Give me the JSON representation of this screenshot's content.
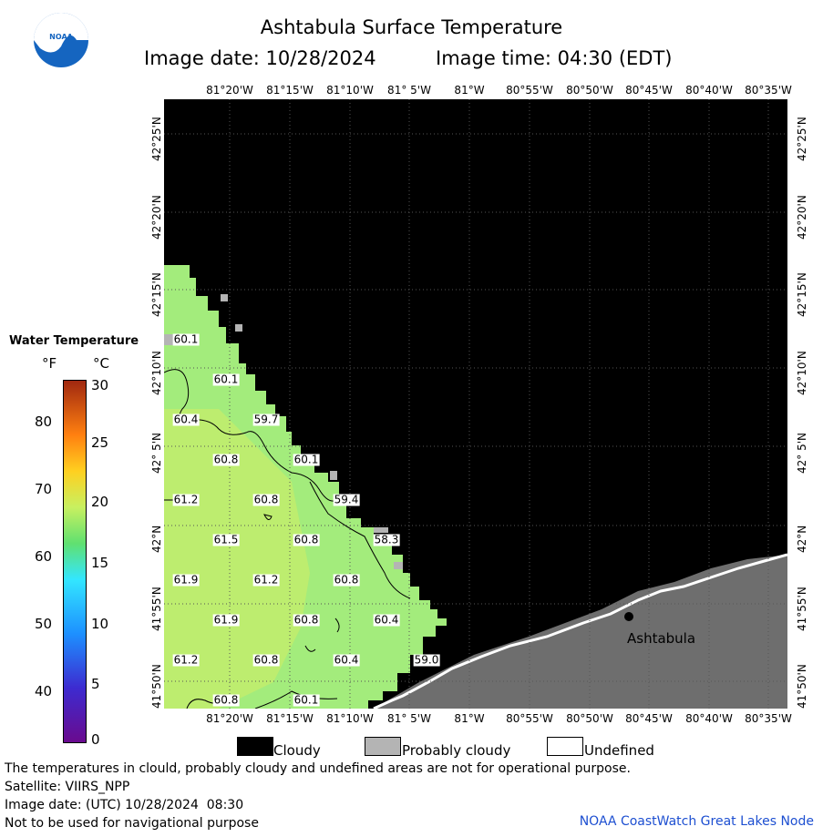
{
  "title": "Ashtabula Surface Temperature",
  "image_date": "Image date: 10/28/2024",
  "image_time": "Image time: 04:30 (EDT)",
  "logo_text": "NOAA",
  "lon_labels": [
    "81°20'W",
    "81°15'W",
    "81°10'W",
    "81° 5'W",
    "81°W",
    "80°55'W",
    "80°50'W",
    "80°45'W",
    "80°40'W",
    "80°35'W"
  ],
  "lat_labels": [
    "42°25'N",
    "42°20'N",
    "42°15'N",
    "42°10'N",
    "42° 5'N",
    "42°N",
    "41°55'N",
    "41°50'N"
  ],
  "colorbar": {
    "title": "Water Temperature",
    "unit_f": "°F",
    "unit_c": "°C",
    "f_ticks": [
      "80",
      "70",
      "60",
      "50",
      "40"
    ],
    "c_ticks": [
      "30",
      "25",
      "20",
      "15",
      "10",
      "5",
      "0"
    ]
  },
  "temperature_labels": [
    "60.1",
    "60.1",
    "60.4",
    "59.7",
    "60.8",
    "60.1",
    "61.2",
    "60.8",
    "59.4",
    "61.5",
    "60.8",
    "58.3",
    "61.9",
    "61.2",
    "60.8",
    "61.9",
    "60.8",
    "60.4",
    "61.2",
    "60.8",
    "60.4",
    "59.0",
    "60.8",
    "60.1"
  ],
  "city": "Ashtabula",
  "legend": {
    "cloudy": "Cloudy",
    "probably_cloudy": "Probably cloudy",
    "undefined": "Undefined"
  },
  "colors": {
    "cloudy": "#000000",
    "probably_cloudy": "#b4b4b4",
    "land": "#6e6e6e",
    "water": "#8ee87a"
  },
  "footer": {
    "warning": "The temperatures in clould, probably cloudy and undefined areas are not for operational purpose.",
    "satellite": "Satellite: VIIRS_NPP",
    "utc_date": "Image date: (UTC) 10/28/2024  08:30",
    "nav": "Not to be used for navigational purpose",
    "credit": "NOAA CoastWatch Great Lakes Node"
  }
}
